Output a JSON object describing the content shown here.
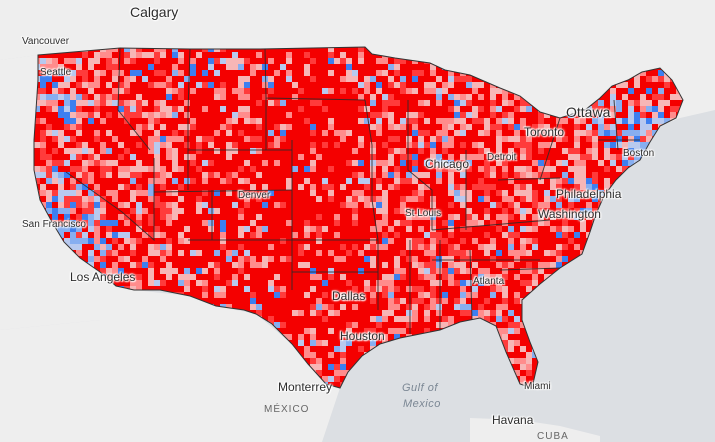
{
  "map": {
    "colors": {
      "strong_red": "#f40000",
      "red": "#ff3b3b",
      "light_red": "#ff8c8c",
      "pale_red": "#f7b6b6",
      "pale_blue": "#b8c9ef",
      "light_blue": "#87aef0",
      "blue": "#3d7ff0",
      "land": "#eeeeee",
      "water": "#dcdfe3"
    },
    "labels": {
      "calgary": "Calgary",
      "vancouver": "Vancouver",
      "seattle": "Seattle",
      "ottawa": "Ottawa",
      "toronto": "Toronto",
      "boston": "Boston",
      "chicago": "Chicago",
      "detroit": "Detroit",
      "philadelphia": "Philadelphia",
      "washington": "Washington",
      "denver": "Denver",
      "st_louis": "St Louis",
      "san_francisco": "San Francisco",
      "los_angeles": "Los Angeles",
      "dallas": "Dallas",
      "atlanta": "Atlanta",
      "houston": "Houston",
      "monterrey": "Monterrey",
      "mexico": "MÉXICO",
      "gulf_line1": "Gulf of",
      "gulf_line2": "Mexico",
      "miami": "Miami",
      "havana": "Havana",
      "cuba": "CUBA"
    }
  }
}
